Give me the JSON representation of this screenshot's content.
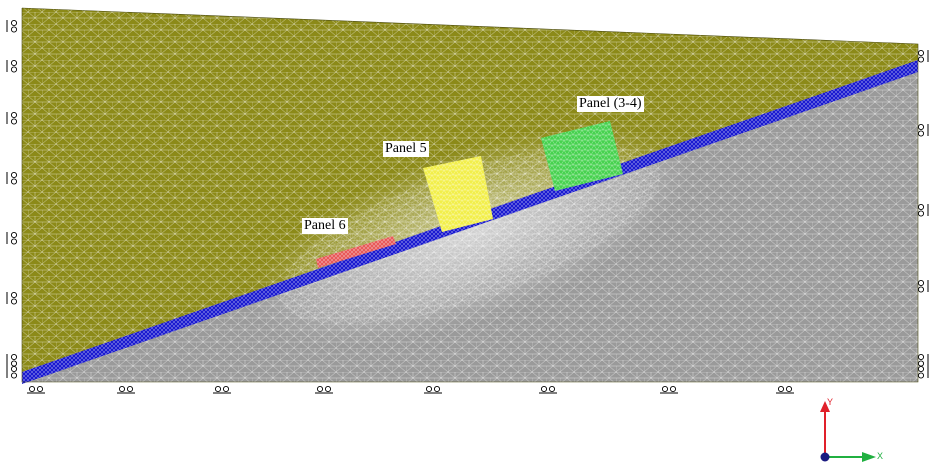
{
  "panels": [
    {
      "label": "Panel 6",
      "color": "#e85a5a"
    },
    {
      "label": "Panel 5",
      "color": "#f2ef4a"
    },
    {
      "label": "Panel (3-4)",
      "color": "#47d24f"
    }
  ],
  "axes": {
    "y_label": "Y",
    "x_label": "X",
    "y_color": "#e0202a",
    "x_color": "#20b040",
    "z_color": "#1a1a80"
  },
  "materials": {
    "overburden": "#8c8a18",
    "bedrock": "#9a9a9a",
    "interface": "#1a1ad0",
    "mesh": "#ffffff"
  },
  "supports": {
    "left_count": 9,
    "right_count": 6,
    "bottom_count": 8
  }
}
